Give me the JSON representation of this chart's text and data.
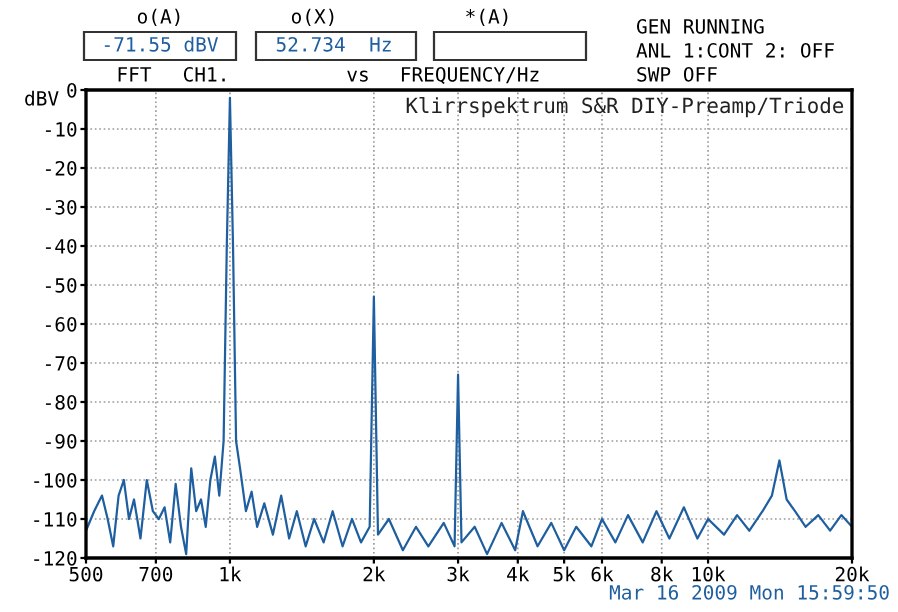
{
  "chart_data": {
    "type": "line",
    "title": "Klirrspektrum S&R DIY-Preamp/Triode",
    "xlabel": "FREQUENCY/Hz",
    "ylabel": "dBV",
    "annotations": [
      "o(A)",
      "-71.55 dBV",
      "o(X)",
      "52.734  Hz",
      "*(A)",
      "GEN RUNNING",
      "ANL 1:CONT 2: OFF",
      "SWP OFF",
      "FFT",
      "CH1.",
      "vs",
      "Mar 16 2009 Mon 15:59:50"
    ],
    "log": "x",
    "grid": true,
    "line_style": "solid",
    "marker": "none",
    "xlim": [
      500,
      20000
    ],
    "ylim": [
      -120,
      0
    ],
    "xticks": [
      500,
      {
        "value": 700,
        "label": "700"
      },
      {
        "value": 1000,
        "label": "1k"
      },
      {
        "value": 2000,
        "label": "2k"
      },
      {
        "value": 3000,
        "label": "3k"
      },
      {
        "value": 4000,
        "label": "4k"
      },
      {
        "value": 5000,
        "label": "5k"
      },
      {
        "value": 6000,
        "label": "6k"
      },
      {
        "value": 8000,
        "label": "8k"
      },
      {
        "value": 10000,
        "label": "10k"
      },
      {
        "value": 20000,
        "label": "20k"
      }
    ],
    "yticks": [
      0,
      -10,
      -20,
      -30,
      -40,
      -50,
      -60,
      -70,
      -80,
      -90,
      -100,
      -110,
      -120
    ],
    "series": [
      {
        "color": "#1f5fa0",
        "x": [
          500,
          520,
          540,
          555,
          570,
          585,
          600,
          615,
          630,
          650,
          670,
          690,
          710,
          730,
          750,
          770,
          790,
          810,
          830,
          850,
          870,
          890,
          910,
          930,
          950,
          970,
          985,
          1000,
          1015,
          1030,
          1050,
          1080,
          1110,
          1140,
          1180,
          1230,
          1280,
          1330,
          1380,
          1440,
          1500,
          1570,
          1640,
          1720,
          1800,
          1880,
          1960,
          2000,
          2040,
          2150,
          2300,
          2450,
          2600,
          2800,
          2950,
          3000,
          3050,
          3250,
          3450,
          3700,
          3950,
          4100,
          4400,
          4700,
          5000,
          5300,
          5700,
          6000,
          6400,
          6800,
          7300,
          7800,
          8300,
          8900,
          9500,
          10000,
          10800,
          11500,
          12200,
          13000,
          13600,
          14100,
          14600,
          15200,
          16000,
          17000,
          18000,
          19000,
          20000
        ],
        "values": [
          -113,
          -108,
          -104,
          -110,
          -117,
          -104,
          -100,
          -110,
          -105,
          -115,
          -100,
          -108,
          -110,
          -107,
          -116,
          -101,
          -112,
          -119,
          -97,
          -108,
          -105,
          -112,
          -100,
          -94,
          -104,
          -90,
          -40,
          -2,
          -40,
          -90,
          -97,
          -108,
          -103,
          -112,
          -106,
          -114,
          -104,
          -115,
          -108,
          -117,
          -110,
          -116,
          -108,
          -117,
          -110,
          -116,
          -112,
          -53,
          -114,
          -110,
          -118,
          -112,
          -117,
          -111,
          -117,
          -73,
          -116,
          -112,
          -119,
          -111,
          -118,
          -108,
          -117,
          -111,
          -118,
          -112,
          -117,
          -110,
          -116,
          -109,
          -116,
          -108,
          -115,
          -107,
          -115,
          -110,
          -114,
          -109,
          -113,
          -108,
          -104,
          -95,
          -105,
          -108,
          -112,
          -109,
          -113,
          -109,
          -112
        ]
      }
    ]
  }
}
